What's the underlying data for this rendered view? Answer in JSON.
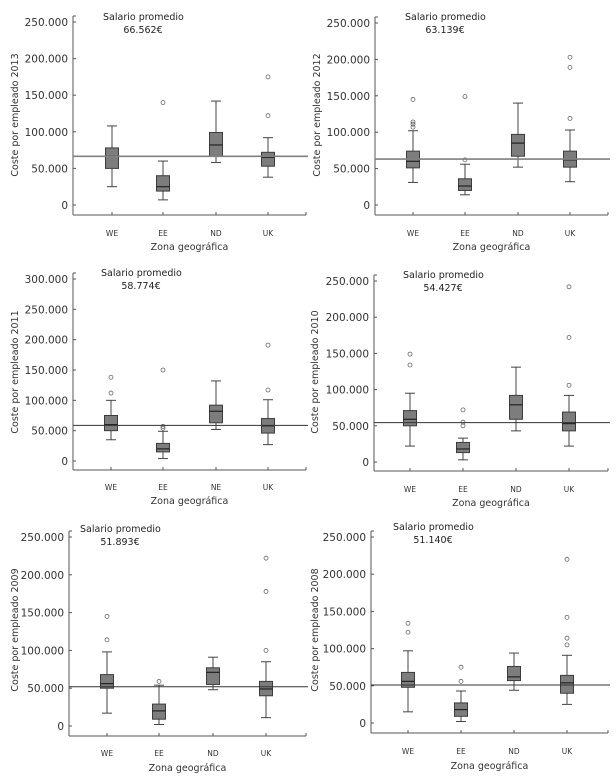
{
  "chart_data": [
    {
      "type": "boxplot",
      "year": "2013",
      "ylabel": "Coste por empleado 2013",
      "xlabel": "Zona geográfica",
      "annotation_title": "Salario promedio",
      "annotation_value": "66.562€",
      "reference_line": 66562,
      "ylim": [
        0,
        250000
      ],
      "yticks": [
        0,
        50000,
        100000,
        150000,
        200000,
        250000
      ],
      "ytick_labels": [
        "0",
        "50.000",
        "100.000",
        "150.000",
        "200.000",
        "250.000"
      ],
      "categories": [
        "WE",
        "EE",
        "ND",
        "UK"
      ],
      "boxes": [
        {
          "whisker_low": 25000,
          "q1": 50000,
          "median": 67000,
          "q3": 78000,
          "whisker_high": 108000,
          "outliers": []
        },
        {
          "whisker_low": 7000,
          "q1": 19000,
          "median": 25000,
          "q3": 40000,
          "whisker_high": 60000,
          "outliers": [
            140000
          ]
        },
        {
          "whisker_low": 58000,
          "q1": 67000,
          "median": 82000,
          "q3": 99000,
          "whisker_high": 142000,
          "outliers": []
        },
        {
          "whisker_low": 38000,
          "q1": 53000,
          "median": 65000,
          "q3": 72000,
          "whisker_high": 92000,
          "outliers": [
            122000,
            175000
          ]
        }
      ]
    },
    {
      "type": "boxplot",
      "year": "2012",
      "ylabel": "Coste por empleado 2012",
      "xlabel": "Zona geográfica",
      "annotation_title": "Salario promedio",
      "annotation_value": "63.139€",
      "reference_line": 63139,
      "ylim": [
        0,
        250000
      ],
      "yticks": [
        0,
        50000,
        100000,
        150000,
        200000,
        250000
      ],
      "ytick_labels": [
        "0",
        "50.000",
        "100.000",
        "150.000",
        "200.000",
        "250.000"
      ],
      "categories": [
        "WE",
        "EE",
        "ND",
        "UK"
      ],
      "boxes": [
        {
          "whisker_low": 31000,
          "q1": 51000,
          "median": 60000,
          "q3": 74000,
          "whisker_high": 102000,
          "outliers": [
            107000,
            111000,
            114000,
            145000
          ]
        },
        {
          "whisker_low": 14000,
          "q1": 20000,
          "median": 26000,
          "q3": 36000,
          "whisker_high": 56000,
          "outliers": [
            62000,
            149000
          ]
        },
        {
          "whisker_low": 52000,
          "q1": 67000,
          "median": 85000,
          "q3": 97000,
          "whisker_high": 140000,
          "outliers": []
        },
        {
          "whisker_low": 32000,
          "q1": 52000,
          "median": 62000,
          "q3": 74000,
          "whisker_high": 103000,
          "outliers": [
            119000,
            189000,
            203000
          ]
        }
      ]
    },
    {
      "type": "boxplot",
      "year": "2011",
      "ylabel": "Coste por empleado 2011",
      "xlabel": "Zona geográfica",
      "annotation_title": "Salario promedio",
      "annotation_value": "58.774€",
      "reference_line": 58774,
      "ylim": [
        0,
        300000
      ],
      "yticks": [
        0,
        50000,
        100000,
        150000,
        200000,
        250000,
        300000
      ],
      "ytick_labels": [
        "0",
        "50.000",
        "100.000",
        "150.000",
        "200.000",
        "250.000",
        "300.000"
      ],
      "categories": [
        "WE",
        "EE",
        "NE",
        "UK"
      ],
      "boxes": [
        {
          "whisker_low": 35000,
          "q1": 50000,
          "median": 60000,
          "q3": 75000,
          "whisker_high": 100000,
          "outliers": [
            112000,
            138000
          ]
        },
        {
          "whisker_low": 4000,
          "q1": 15000,
          "median": 20000,
          "q3": 29000,
          "whisker_high": 49000,
          "outliers": [
            54000,
            57000,
            150000
          ]
        },
        {
          "whisker_low": 52000,
          "q1": 63000,
          "median": 82000,
          "q3": 92000,
          "whisker_high": 132000,
          "outliers": []
        },
        {
          "whisker_low": 27000,
          "q1": 46000,
          "median": 58000,
          "q3": 70000,
          "whisker_high": 101000,
          "outliers": [
            117000,
            191000
          ]
        }
      ]
    },
    {
      "type": "boxplot",
      "year": "2010",
      "ylabel": "Coste por empleado 2010",
      "xlabel": "Zona geográfica",
      "annotation_title": "Salario promedio",
      "annotation_value": "54.427€",
      "reference_line": 54427,
      "ylim": [
        0,
        250000
      ],
      "yticks": [
        0,
        50000,
        100000,
        150000,
        200000,
        250000
      ],
      "ytick_labels": [
        "0",
        "50.000",
        "100.000",
        "150.000",
        "200.000",
        "250.000"
      ],
      "categories": [
        "WE",
        "EE",
        "ND",
        "UK"
      ],
      "boxes": [
        {
          "whisker_low": 22000,
          "q1": 50000,
          "median": 59000,
          "q3": 71000,
          "whisker_high": 95000,
          "outliers": [
            134000,
            149000
          ]
        },
        {
          "whisker_low": 3000,
          "q1": 13000,
          "median": 18000,
          "q3": 27000,
          "whisker_high": 33000,
          "outliers": [
            50000,
            55000,
            72000
          ]
        },
        {
          "whisker_low": 43000,
          "q1": 59000,
          "median": 79000,
          "q3": 92000,
          "whisker_high": 131000,
          "outliers": []
        },
        {
          "whisker_low": 22000,
          "q1": 43000,
          "median": 53000,
          "q3": 69000,
          "whisker_high": 92000,
          "outliers": [
            106000,
            172000,
            242000
          ]
        }
      ]
    },
    {
      "type": "boxplot",
      "year": "2009",
      "ylabel": "Coste por empleado 2009",
      "xlabel": "Zona geográfica",
      "annotation_title": "Salario promedio",
      "annotation_value": "51.893€",
      "reference_line": 51893,
      "ylim": [
        0,
        250000
      ],
      "yticks": [
        0,
        50000,
        100000,
        150000,
        200000,
        250000
      ],
      "ytick_labels": [
        "0",
        "50.000",
        "100.000",
        "150.000",
        "200.000",
        "250.000"
      ],
      "categories": [
        "WE",
        "EE",
        "ND",
        "UK"
      ],
      "boxes": [
        {
          "whisker_low": 17000,
          "q1": 50000,
          "median": 56000,
          "q3": 68000,
          "whisker_high": 98000,
          "outliers": [
            114000,
            145000
          ]
        },
        {
          "whisker_low": 2000,
          "q1": 9000,
          "median": 20000,
          "q3": 29000,
          "whisker_high": 54000,
          "outliers": [
            59000
          ]
        },
        {
          "whisker_low": 48000,
          "q1": 55000,
          "median": 71000,
          "q3": 77000,
          "whisker_high": 91000,
          "outliers": []
        },
        {
          "whisker_low": 11000,
          "q1": 40000,
          "median": 49000,
          "q3": 59000,
          "whisker_high": 85000,
          "outliers": [
            100000,
            178000,
            222000
          ]
        }
      ]
    },
    {
      "type": "boxplot",
      "year": "2008",
      "ylabel": "Coste por empleado 2008",
      "xlabel": "Zona geográfica",
      "annotation_title": "Salario promedio",
      "annotation_value": "51.140€",
      "reference_line": 51140,
      "ylim": [
        0,
        250000
      ],
      "yticks": [
        0,
        50000,
        100000,
        150000,
        200000,
        250000
      ],
      "ytick_labels": [
        "0",
        "50.000",
        "100.000",
        "150.000",
        "200.000",
        "250.000"
      ],
      "categories": [
        "WE",
        "EE",
        "ND",
        "UK"
      ],
      "boxes": [
        {
          "whisker_low": 15000,
          "q1": 48000,
          "median": 56000,
          "q3": 68000,
          "whisker_high": 97000,
          "outliers": [
            122000,
            134000
          ]
        },
        {
          "whisker_low": 2000,
          "q1": 9000,
          "median": 18000,
          "q3": 27000,
          "whisker_high": 43000,
          "outliers": [
            56000,
            75000
          ]
        },
        {
          "whisker_low": 44000,
          "q1": 57000,
          "median": 62000,
          "q3": 76000,
          "whisker_high": 94000,
          "outliers": []
        },
        {
          "whisker_low": 25000,
          "q1": 40000,
          "median": 54000,
          "q3": 64000,
          "whisker_high": 91000,
          "outliers": [
            105000,
            114000,
            142000,
            220000
          ]
        }
      ]
    }
  ]
}
